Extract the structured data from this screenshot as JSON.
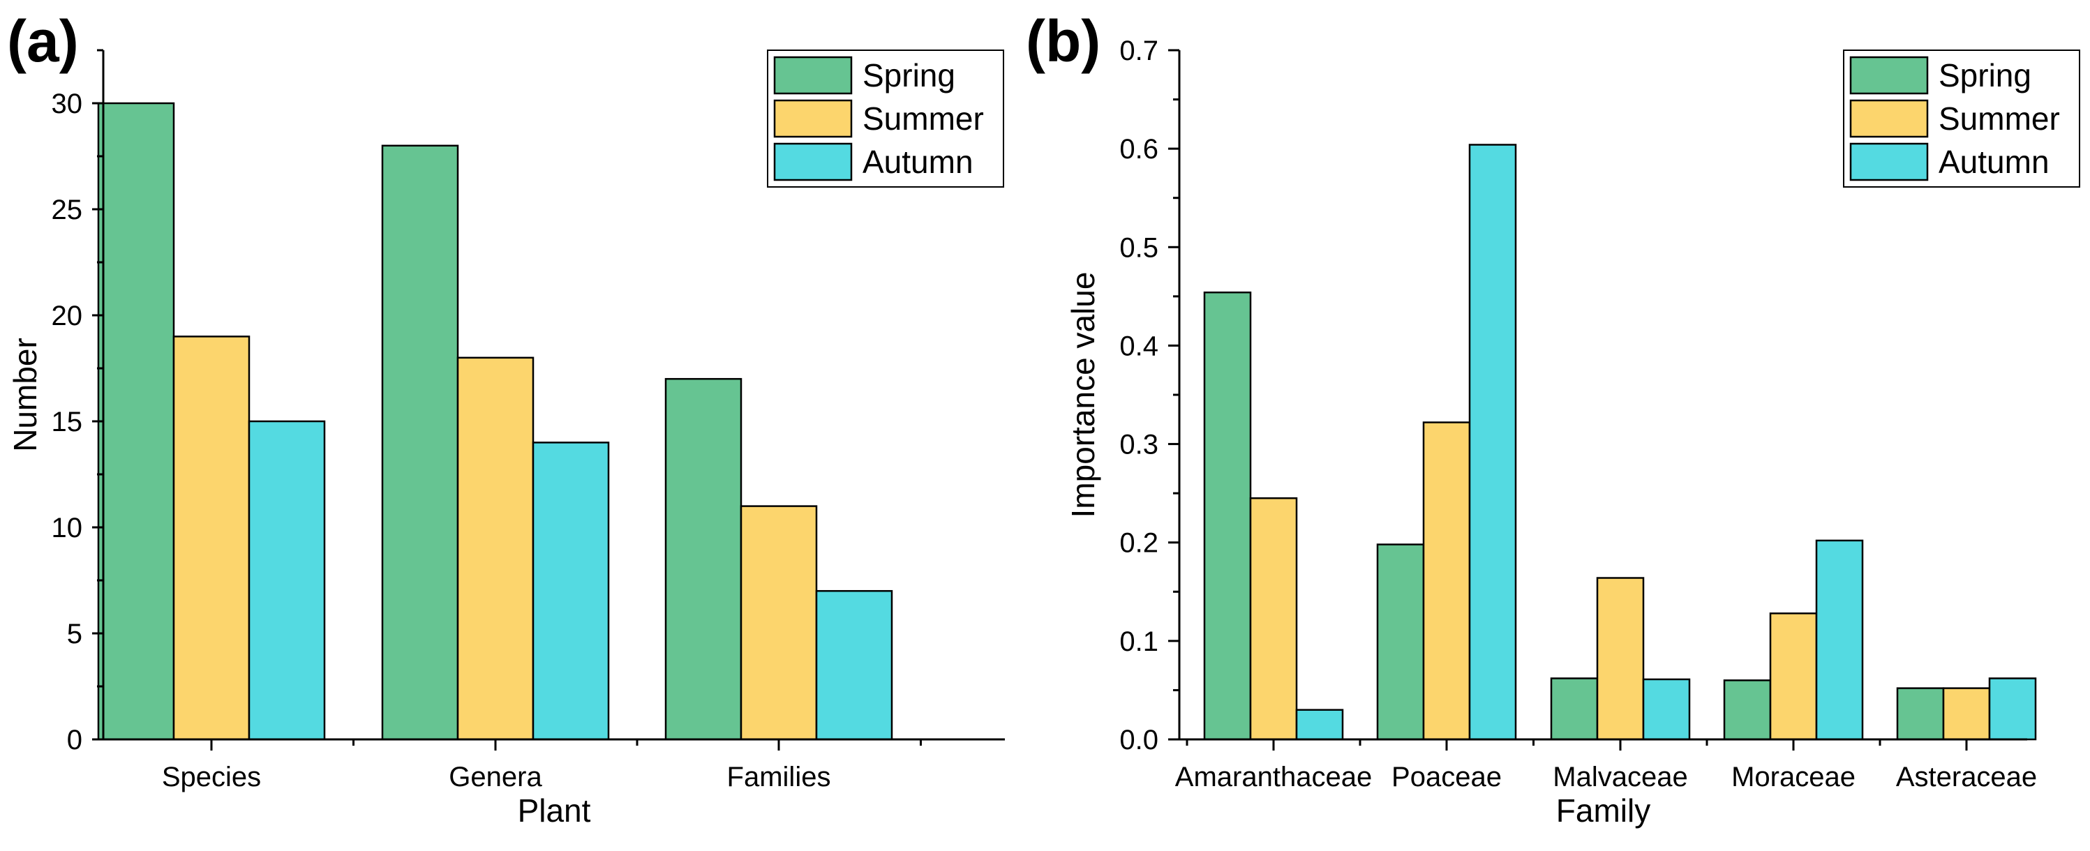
{
  "colors": {
    "spring": "#66c492",
    "summer": "#fcd56d",
    "autumn": "#54dae1",
    "outline": "#000000"
  },
  "chart_data": [
    {
      "type": "bar",
      "panel_label": "(a)",
      "title": "",
      "xlabel": "Plant",
      "ylabel": "Number",
      "categories": [
        "Species",
        "Genera",
        "Families"
      ],
      "series": [
        {
          "name": "Spring",
          "color": "#66c492",
          "values": [
            30,
            28,
            17
          ]
        },
        {
          "name": "Summer",
          "color": "#fcd56d",
          "values": [
            19,
            18,
            11
          ]
        },
        {
          "name": "Autumn",
          "color": "#54dae1",
          "values": [
            15,
            14,
            7
          ]
        }
      ],
      "ylim": [
        0,
        32.5
      ],
      "yticks": [
        0,
        5,
        10,
        15,
        20,
        25,
        30
      ],
      "ytick_labels": [
        "0",
        "5",
        "10",
        "15",
        "20",
        "25",
        "30"
      ],
      "legend": "top-right",
      "grid": false
    },
    {
      "type": "bar",
      "panel_label": "(b)",
      "title": "",
      "xlabel": "Family",
      "ylabel": "Importance value",
      "categories": [
        "Amaranthaceae",
        "Poaceae",
        "Malvaceae",
        "Moraceae",
        "Asteraceae"
      ],
      "series": [
        {
          "name": "Spring",
          "color": "#66c492",
          "values": [
            0.454,
            0.198,
            0.062,
            0.06,
            0.052
          ]
        },
        {
          "name": "Summer",
          "color": "#fcd56d",
          "values": [
            0.245,
            0.322,
            0.164,
            0.128,
            0.052
          ]
        },
        {
          "name": "Autumn",
          "color": "#54dae1",
          "values": [
            0.03,
            0.604,
            0.061,
            0.202,
            0.062
          ]
        }
      ],
      "ylim": [
        0,
        0.7
      ],
      "yticks": [
        0,
        0.1,
        0.2,
        0.3,
        0.4,
        0.5,
        0.6,
        0.7
      ],
      "ytick_labels": [
        "0.0",
        "0.1",
        "0.2",
        "0.3",
        "0.4",
        "0.5",
        "0.6",
        "0.7"
      ],
      "legend": "top-right",
      "grid": false
    }
  ]
}
